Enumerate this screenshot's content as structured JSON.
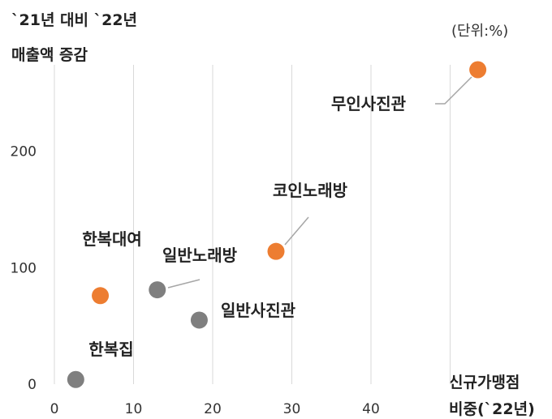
{
  "chart_data": {
    "type": "scatter",
    "ylabel_lines": [
      "`21년 대비 `22년",
      "매출액 증감"
    ],
    "xlabel_lines": [
      "신규가맹점",
      "비중(`22년)"
    ],
    "unit_note": "(단위:%)",
    "xlim": [
      0,
      50
    ],
    "ylim": [
      0,
      280
    ],
    "x_ticks": [
      0,
      10,
      20,
      30,
      40
    ],
    "y_ticks": [
      0,
      100,
      200
    ],
    "grid": "vertical",
    "colors": {
      "orange": "#ED7D31",
      "gray": "#7F7F7F",
      "grid": "#D9D9D9",
      "leader": "#A6A6A6"
    },
    "points": [
      {
        "label": "무인사진관",
        "x": 53.5,
        "y": 270,
        "color": "orange"
      },
      {
        "label": "코인노래방",
        "x": 28,
        "y": 114,
        "color": "orange"
      },
      {
        "label": "한복대여",
        "x": 5.8,
        "y": 76,
        "color": "orange"
      },
      {
        "label": "일반노래방",
        "x": 13,
        "y": 81,
        "color": "gray"
      },
      {
        "label": "일반사진관",
        "x": 18.3,
        "y": 55,
        "color": "gray"
      },
      {
        "label": "한복집",
        "x": 2.7,
        "y": 4,
        "color": "gray"
      }
    ]
  }
}
